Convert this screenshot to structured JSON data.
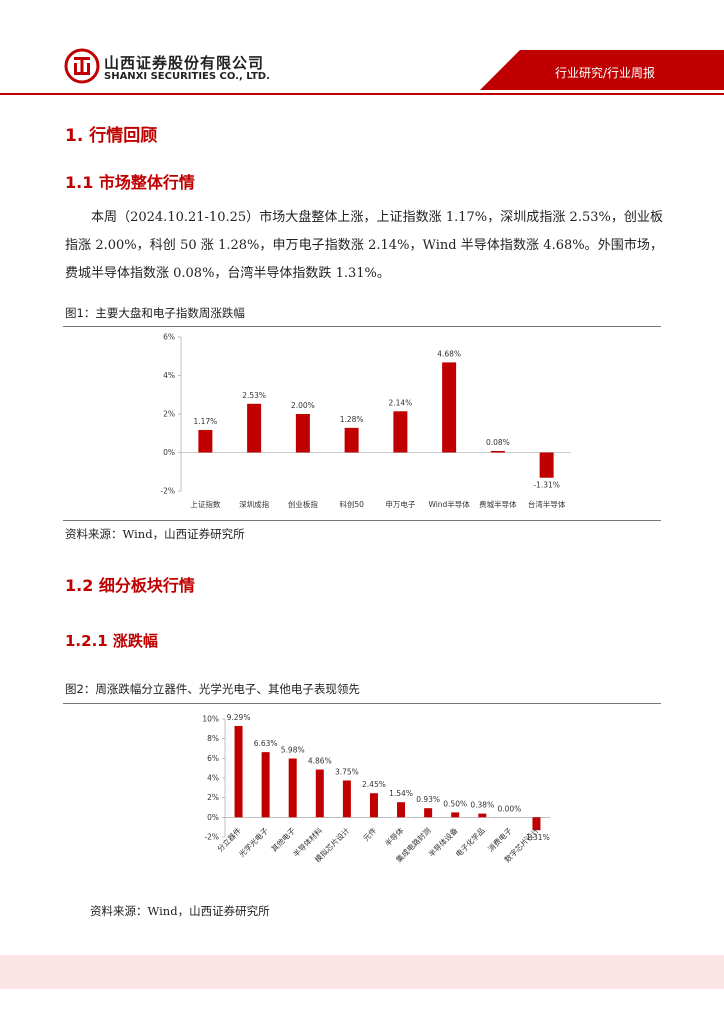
{
  "header": {
    "company_cn": "山西证券股份有限公司",
    "company_en": "SHANXI SECURITIES CO., LTD.",
    "report_type": "行业研究/行业周报"
  },
  "sections": [
    {
      "heading": "1. 行情回顾"
    },
    {
      "heading": "1.1 市场整体行情"
    },
    {
      "heading": "1.2 细分板块行情"
    },
    {
      "heading": "1.2.1 涨跌幅"
    }
  ],
  "paragraph": "本周（2024.10.21-10.25）市场大盘整体上涨，上证指数涨 1.17%，深圳成指涨 2.53%，创业板指涨 2.00%，科创 50 涨 1.28%，申万电子指数涨 2.14%，Wind 半导体指数涨 4.68%。外围市场，费城半导体指数涨 0.08%，台湾半导体指数跌 1.31%。",
  "chart_data": [
    {
      "type": "bar",
      "title": "图1：主要大盘和电子指数周涨跌幅",
      "note": "资料来源：Wind，山西证券研究所",
      "categories": [
        "上证指数",
        "深圳成指",
        "创业板指",
        "科创50",
        "申万电子",
        "Wind半导体",
        "费城半导体",
        "台湾半导体"
      ],
      "values": [
        1.17,
        2.53,
        2.0,
        1.28,
        2.14,
        4.68,
        0.08,
        -1.31
      ],
      "value_labels": [
        "1.17%",
        "2.53%",
        "2.00%",
        "1.28%",
        "2.14%",
        "4.68%",
        "0.08%",
        "-1.31%"
      ],
      "color": "#c00000",
      "ylim": [
        -2,
        6
      ],
      "yticks": [
        {
          "value": -2,
          "label": "-2%"
        },
        {
          "value": 0,
          "label": "0%"
        },
        {
          "value": 2,
          "label": "2%"
        },
        {
          "value": 4,
          "label": "4%"
        },
        {
          "value": 6,
          "label": "6%"
        }
      ],
      "grid": false
    },
    {
      "type": "bar",
      "title": "图2：周涨跌幅分立器件、光学光电子、其他电子表现领先",
      "note": "资料来源：Wind，山西证券研究所",
      "categories": [
        "分立器件",
        "光学光电子",
        "其他电子",
        "半导体材料",
        "模拟芯片设计",
        "元件",
        "半导体",
        "集成电路封测",
        "半导体设备",
        "电子化学品",
        "消费电子",
        "数字芯片设计"
      ],
      "values": [
        9.29,
        6.63,
        5.98,
        4.86,
        3.75,
        2.45,
        1.54,
        0.93,
        0.5,
        0.38,
        0.0,
        -1.31
      ],
      "value_labels": [
        "9.29%",
        "6.63%",
        "5.98%",
        "4.86%",
        "3.75%",
        "2.45%",
        "1.54%",
        "0.93%",
        "0.50%",
        "0.38%",
        "0.00%",
        "-1.31%"
      ],
      "color": "#c00000",
      "ylim": [
        -2,
        10
      ],
      "yticks": [
        {
          "value": -2,
          "label": "-2%"
        },
        {
          "value": 0,
          "label": "0%"
        },
        {
          "value": 2,
          "label": "2%"
        },
        {
          "value": 4,
          "label": "4%"
        },
        {
          "value": 6,
          "label": "6%"
        },
        {
          "value": 8,
          "label": "8%"
        },
        {
          "value": 10,
          "label": "10%"
        }
      ],
      "grid": false
    }
  ]
}
